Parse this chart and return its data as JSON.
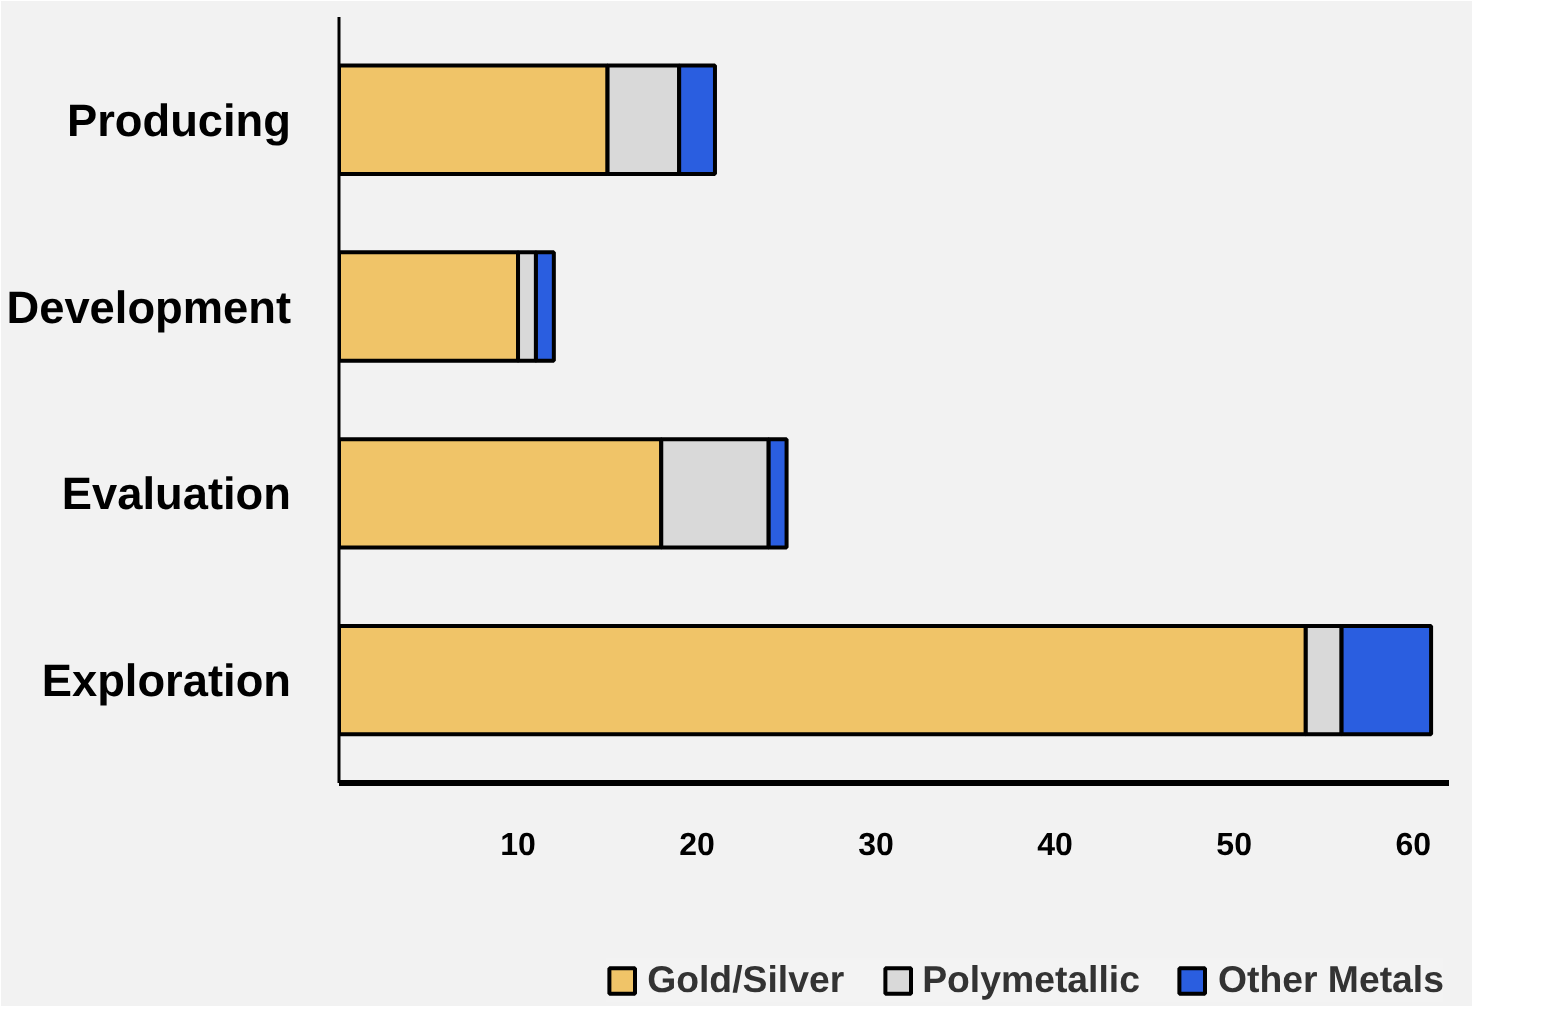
{
  "chart_data": {
    "type": "bar",
    "orientation": "horizontal",
    "stacked": true,
    "categories": [
      "Producing",
      "Development",
      "Evaluation",
      "Exploration"
    ],
    "series": [
      {
        "name": "Gold/Silver",
        "color": "#f0c468",
        "values": [
          15,
          10,
          18,
          54
        ]
      },
      {
        "name": "Polymetallic",
        "color": "#d9d9d9",
        "values": [
          4,
          1,
          6,
          2
        ]
      },
      {
        "name": "Other Metals",
        "color": "#2a5ee0",
        "values": [
          2,
          1,
          1,
          5
        ]
      }
    ],
    "xlim": [
      0,
      62
    ],
    "xticks": [
      10,
      20,
      30,
      40,
      50,
      60
    ],
    "grid": false,
    "legend": "bottom"
  }
}
